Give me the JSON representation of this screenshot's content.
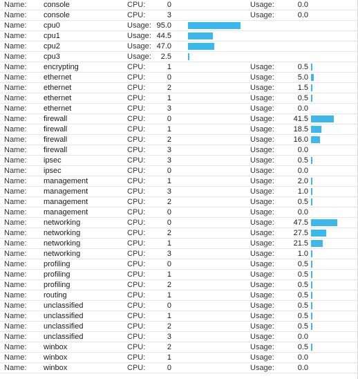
{
  "bar_color": "#3db8ec",
  "max_usage": 100,
  "rows": [
    {
      "name_key": "Name:",
      "name": "console",
      "f2_key": "CPU:",
      "f2_val": "0",
      "f3_key": "Usage:",
      "f3_val": "0.0",
      "usage": 0
    },
    {
      "name_key": "Name:",
      "name": "console",
      "f2_key": "CPU:",
      "f2_val": "3",
      "f3_key": "Usage:",
      "f3_val": "0.0",
      "usage": 0
    },
    {
      "name_key": "Name:",
      "name": "cpu0",
      "f2_key": "Usage:",
      "f2_val": "95.0",
      "usage": 95.0
    },
    {
      "name_key": "Name:",
      "name": "cpu1",
      "f2_key": "Usage:",
      "f2_val": "44.5",
      "usage": 44.5
    },
    {
      "name_key": "Name:",
      "name": "cpu2",
      "f2_key": "Usage:",
      "f2_val": "47.0",
      "usage": 47.0
    },
    {
      "name_key": "Name:",
      "name": "cpu3",
      "f2_key": "Usage:",
      "f2_val": "2.5",
      "usage": 2.5
    },
    {
      "name_key": "Name:",
      "name": "encrypting",
      "f2_key": "CPU:",
      "f2_val": "1",
      "f3_key": "Usage:",
      "f3_val": "0.5",
      "usage": 0.5
    },
    {
      "name_key": "Name:",
      "name": "ethernet",
      "f2_key": "CPU:",
      "f2_val": "0",
      "f3_key": "Usage:",
      "f3_val": "5.0",
      "usage": 5.0
    },
    {
      "name_key": "Name:",
      "name": "ethernet",
      "f2_key": "CPU:",
      "f2_val": "2",
      "f3_key": "Usage:",
      "f3_val": "1.5",
      "usage": 1.5
    },
    {
      "name_key": "Name:",
      "name": "ethernet",
      "f2_key": "CPU:",
      "f2_val": "1",
      "f3_key": "Usage:",
      "f3_val": "0.5",
      "usage": 0.5
    },
    {
      "name_key": "Name:",
      "name": "ethernet",
      "f2_key": "CPU:",
      "f2_val": "3",
      "f3_key": "Usage:",
      "f3_val": "0.0",
      "usage": 0
    },
    {
      "name_key": "Name:",
      "name": "firewall",
      "f2_key": "CPU:",
      "f2_val": "0",
      "f3_key": "Usage:",
      "f3_val": "41.5",
      "usage": 41.5
    },
    {
      "name_key": "Name:",
      "name": "firewall",
      "f2_key": "CPU:",
      "f2_val": "1",
      "f3_key": "Usage:",
      "f3_val": "18.5",
      "usage": 18.5
    },
    {
      "name_key": "Name:",
      "name": "firewall",
      "f2_key": "CPU:",
      "f2_val": "2",
      "f3_key": "Usage:",
      "f3_val": "16.0",
      "usage": 16.0
    },
    {
      "name_key": "Name:",
      "name": "firewall",
      "f2_key": "CPU:",
      "f2_val": "3",
      "f3_key": "Usage:",
      "f3_val": "0.0",
      "usage": 0
    },
    {
      "name_key": "Name:",
      "name": "ipsec",
      "f2_key": "CPU:",
      "f2_val": "3",
      "f3_key": "Usage:",
      "f3_val": "0.5",
      "usage": 0.5
    },
    {
      "name_key": "Name:",
      "name": "ipsec",
      "f2_key": "CPU:",
      "f2_val": "0",
      "f3_key": "Usage:",
      "f3_val": "0.0",
      "usage": 0
    },
    {
      "name_key": "Name:",
      "name": "management",
      "f2_key": "CPU:",
      "f2_val": "1",
      "f3_key": "Usage:",
      "f3_val": "2.0",
      "usage": 2.0
    },
    {
      "name_key": "Name:",
      "name": "management",
      "f2_key": "CPU:",
      "f2_val": "3",
      "f3_key": "Usage:",
      "f3_val": "1.0",
      "usage": 1.0
    },
    {
      "name_key": "Name:",
      "name": "management",
      "f2_key": "CPU:",
      "f2_val": "2",
      "f3_key": "Usage:",
      "f3_val": "0.5",
      "usage": 0.5
    },
    {
      "name_key": "Name:",
      "name": "management",
      "f2_key": "CPU:",
      "f2_val": "0",
      "f3_key": "Usage:",
      "f3_val": "0.0",
      "usage": 0
    },
    {
      "name_key": "Name:",
      "name": "networking",
      "f2_key": "CPU:",
      "f2_val": "0",
      "f3_key": "Usage:",
      "f3_val": "47.5",
      "usage": 47.5
    },
    {
      "name_key": "Name:",
      "name": "networking",
      "f2_key": "CPU:",
      "f2_val": "2",
      "f3_key": "Usage:",
      "f3_val": "27.5",
      "usage": 27.5
    },
    {
      "name_key": "Name:",
      "name": "networking",
      "f2_key": "CPU:",
      "f2_val": "1",
      "f3_key": "Usage:",
      "f3_val": "21.5",
      "usage": 21.5
    },
    {
      "name_key": "Name:",
      "name": "networking",
      "f2_key": "CPU:",
      "f2_val": "3",
      "f3_key": "Usage:",
      "f3_val": "1.0",
      "usage": 1.0
    },
    {
      "name_key": "Name:",
      "name": "profiling",
      "f2_key": "CPU:",
      "f2_val": "0",
      "f3_key": "Usage:",
      "f3_val": "0.5",
      "usage": 0.5
    },
    {
      "name_key": "Name:",
      "name": "profiling",
      "f2_key": "CPU:",
      "f2_val": "1",
      "f3_key": "Usage:",
      "f3_val": "0.5",
      "usage": 0.5
    },
    {
      "name_key": "Name:",
      "name": "profiling",
      "f2_key": "CPU:",
      "f2_val": "2",
      "f3_key": "Usage:",
      "f3_val": "0.5",
      "usage": 0.5
    },
    {
      "name_key": "Name:",
      "name": "routing",
      "f2_key": "CPU:",
      "f2_val": "1",
      "f3_key": "Usage:",
      "f3_val": "0.5",
      "usage": 0.5
    },
    {
      "name_key": "Name:",
      "name": "unclassified",
      "f2_key": "CPU:",
      "f2_val": "0",
      "f3_key": "Usage:",
      "f3_val": "0.5",
      "usage": 0.5
    },
    {
      "name_key": "Name:",
      "name": "unclassified",
      "f2_key": "CPU:",
      "f2_val": "1",
      "f3_key": "Usage:",
      "f3_val": "0.5",
      "usage": 0.5
    },
    {
      "name_key": "Name:",
      "name": "unclassified",
      "f2_key": "CPU:",
      "f2_val": "2",
      "f3_key": "Usage:",
      "f3_val": "0.5",
      "usage": 0.5
    },
    {
      "name_key": "Name:",
      "name": "unclassified",
      "f2_key": "CPU:",
      "f2_val": "3",
      "f3_key": "Usage:",
      "f3_val": "0.0",
      "usage": 0
    },
    {
      "name_key": "Name:",
      "name": "winbox",
      "f2_key": "CPU:",
      "f2_val": "2",
      "f3_key": "Usage:",
      "f3_val": "0.5",
      "usage": 0.5
    },
    {
      "name_key": "Name:",
      "name": "winbox",
      "f2_key": "CPU:",
      "f2_val": "1",
      "f3_key": "Usage:",
      "f3_val": "0.0",
      "usage": 0
    },
    {
      "name_key": "Name:",
      "name": "winbox",
      "f2_key": "CPU:",
      "f2_val": "0",
      "f3_key": "Usage:",
      "f3_val": "0.0",
      "usage": 0
    }
  ]
}
